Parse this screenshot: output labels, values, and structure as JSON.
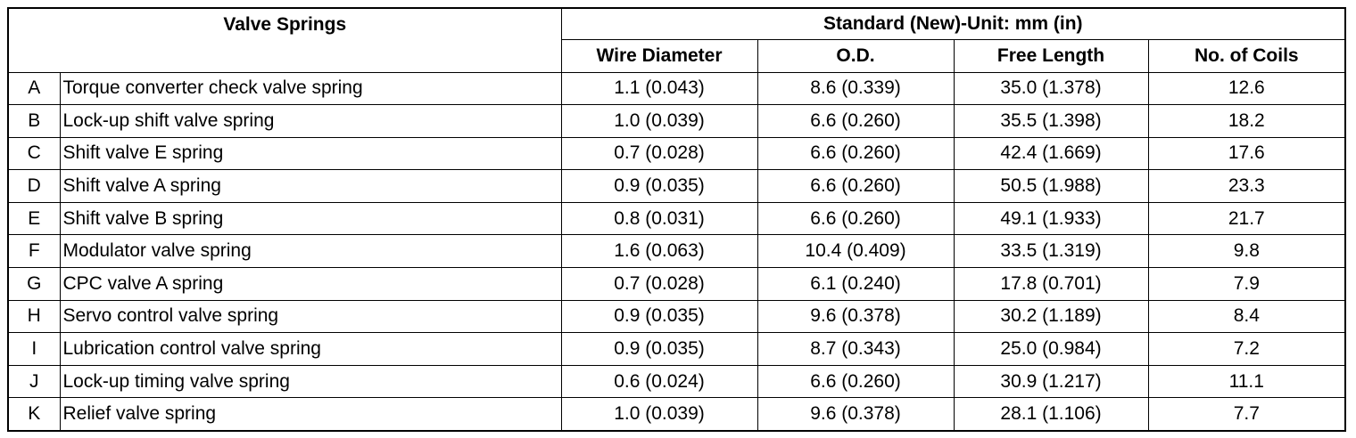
{
  "table": {
    "title": "Valve Springs",
    "standard": "Standard (New)-Unit: mm (in)",
    "columns": [
      "Wire Diameter",
      "O.D.",
      "Free Length",
      "No. of Coils"
    ],
    "rows": [
      [
        "A",
        "Torque converter check valve spring",
        "1.1 (0.043)",
        "8.6 (0.339)",
        "35.0 (1.378)",
        "12.6"
      ],
      [
        "B",
        "Lock-up shift valve spring",
        "1.0 (0.039)",
        "6.6 (0.260)",
        "35.5 (1.398)",
        "18.2"
      ],
      [
        "C",
        "Shift valve E spring",
        "0.7 (0.028)",
        "6.6 (0.260)",
        "42.4 (1.669)",
        "17.6"
      ],
      [
        "D",
        "Shift valve A spring",
        "0.9 (0.035)",
        "6.6 (0.260)",
        "50.5 (1.988)",
        "23.3"
      ],
      [
        "E",
        "Shift valve B spring",
        "0.8 (0.031)",
        "6.6 (0.260)",
        "49.1 (1.933)",
        "21.7"
      ],
      [
        "F",
        "Modulator valve spring",
        "1.6 (0.063)",
        "10.4 (0.409)",
        "33.5 (1.319)",
        "9.8"
      ],
      [
        "G",
        "CPC valve A spring",
        "0.7 (0.028)",
        "6.1 (0.240)",
        "17.8 (0.701)",
        "7.9"
      ],
      [
        "H",
        "Servo control valve spring",
        "0.9 (0.035)",
        "9.6 (0.378)",
        "30.2 (1.189)",
        "8.4"
      ],
      [
        "I",
        "Lubrication control valve spring",
        "0.9 (0.035)",
        "8.7 (0.343)",
        "25.0 (0.984)",
        "7.2"
      ],
      [
        "J",
        "Lock-up timing valve spring",
        "0.6 (0.024)",
        "6.6 (0.260)",
        "30.9 (1.217)",
        "11.1"
      ],
      [
        "K",
        "Relief valve spring",
        "1.0 (0.039)",
        "9.6 (0.378)",
        "28.1 (1.106)",
        "7.7"
      ]
    ]
  }
}
